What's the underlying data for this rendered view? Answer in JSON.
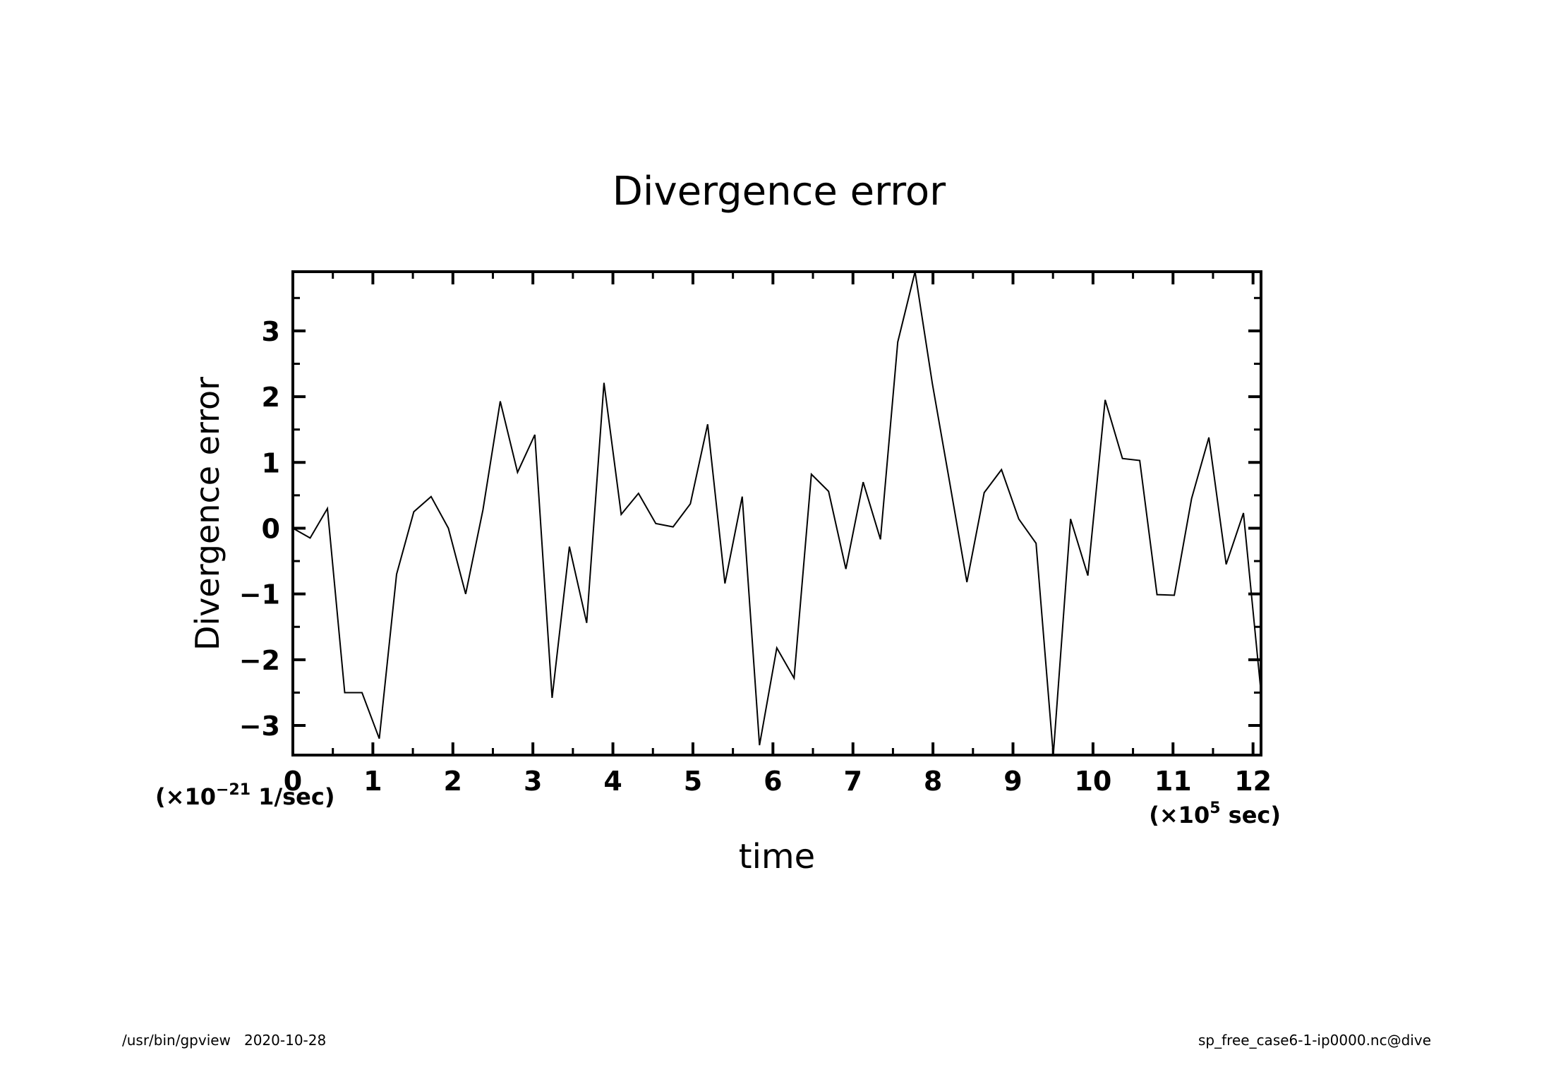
{
  "footer": {
    "program": "/usr/bin/gpview",
    "date": "2020-10-28",
    "source": "sp_free_case6-1-ip0000.nc@dive"
  },
  "chart_data": {
    "type": "line",
    "title": "Divergence error",
    "xlabel": "time",
    "ylabel": "Divergence error",
    "x_unit": {
      "prefix": "(×10",
      "exponent": "5",
      "suffix": " sec)"
    },
    "y_unit": {
      "prefix": "(×10",
      "exponent": "−21",
      "suffix": " 1/sec)"
    },
    "xlim": [
      0,
      12.1
    ],
    "ylim": [
      -3.45,
      3.9
    ],
    "x_ticks": [
      0,
      1,
      2,
      3,
      4,
      5,
      6,
      7,
      8,
      9,
      10,
      11,
      12
    ],
    "x_tick_labels": [
      "0",
      "1",
      "2",
      "3",
      "4",
      "5",
      "6",
      "7",
      "8",
      "9",
      "10",
      "11",
      "12"
    ],
    "y_ticks": [
      -3,
      -2,
      -1,
      0,
      1,
      2,
      3
    ],
    "y_tick_labels": [
      "−3",
      "−2",
      "−1",
      "0",
      "1",
      "2",
      "3"
    ],
    "grid": false,
    "line_color": "#000000",
    "series": [
      {
        "x": [
          0,
          0.216,
          0.432,
          0.648,
          0.864,
          1.08,
          1.296,
          1.512,
          1.728,
          1.944,
          2.16,
          2.376,
          2.592,
          2.808,
          3.024,
          3.24,
          3.456,
          3.672,
          3.888,
          4.104,
          4.32,
          4.536,
          4.752,
          4.968,
          5.184,
          5.4,
          5.616,
          5.832,
          6.048,
          6.264,
          6.48,
          6.696,
          6.912,
          7.128,
          7.344,
          7.56,
          7.776,
          7.992,
          8.208,
          8.424,
          8.64,
          8.856,
          9.072,
          9.288,
          9.504,
          9.72,
          9.936,
          10.152,
          10.368,
          10.584,
          10.8,
          11.016,
          11.232,
          11.448,
          11.664,
          11.88,
          12.1
        ],
        "y": [
          0,
          -0.15,
          0.3,
          -2.5,
          -2.5,
          -3.2,
          -0.7,
          0.25,
          0.48,
          0.0,
          -1.0,
          0.28,
          1.93,
          0.85,
          1.42,
          -2.58,
          -0.28,
          -1.44,
          2.21,
          0.21,
          0.53,
          0.07,
          0.02,
          0.37,
          1.58,
          -0.84,
          0.48,
          -3.3,
          -1.82,
          -2.28,
          0.82,
          0.56,
          -0.62,
          0.7,
          -0.17,
          2.83,
          3.9,
          2.2,
          0.7,
          -0.82,
          0.54,
          0.89,
          0.14,
          -0.23,
          -3.45,
          0.14,
          -0.72,
          1.95,
          1.06,
          1.03,
          -1.01,
          -1.02,
          0.45,
          1.38,
          -0.55,
          0.23,
          -2.5
        ]
      }
    ]
  }
}
